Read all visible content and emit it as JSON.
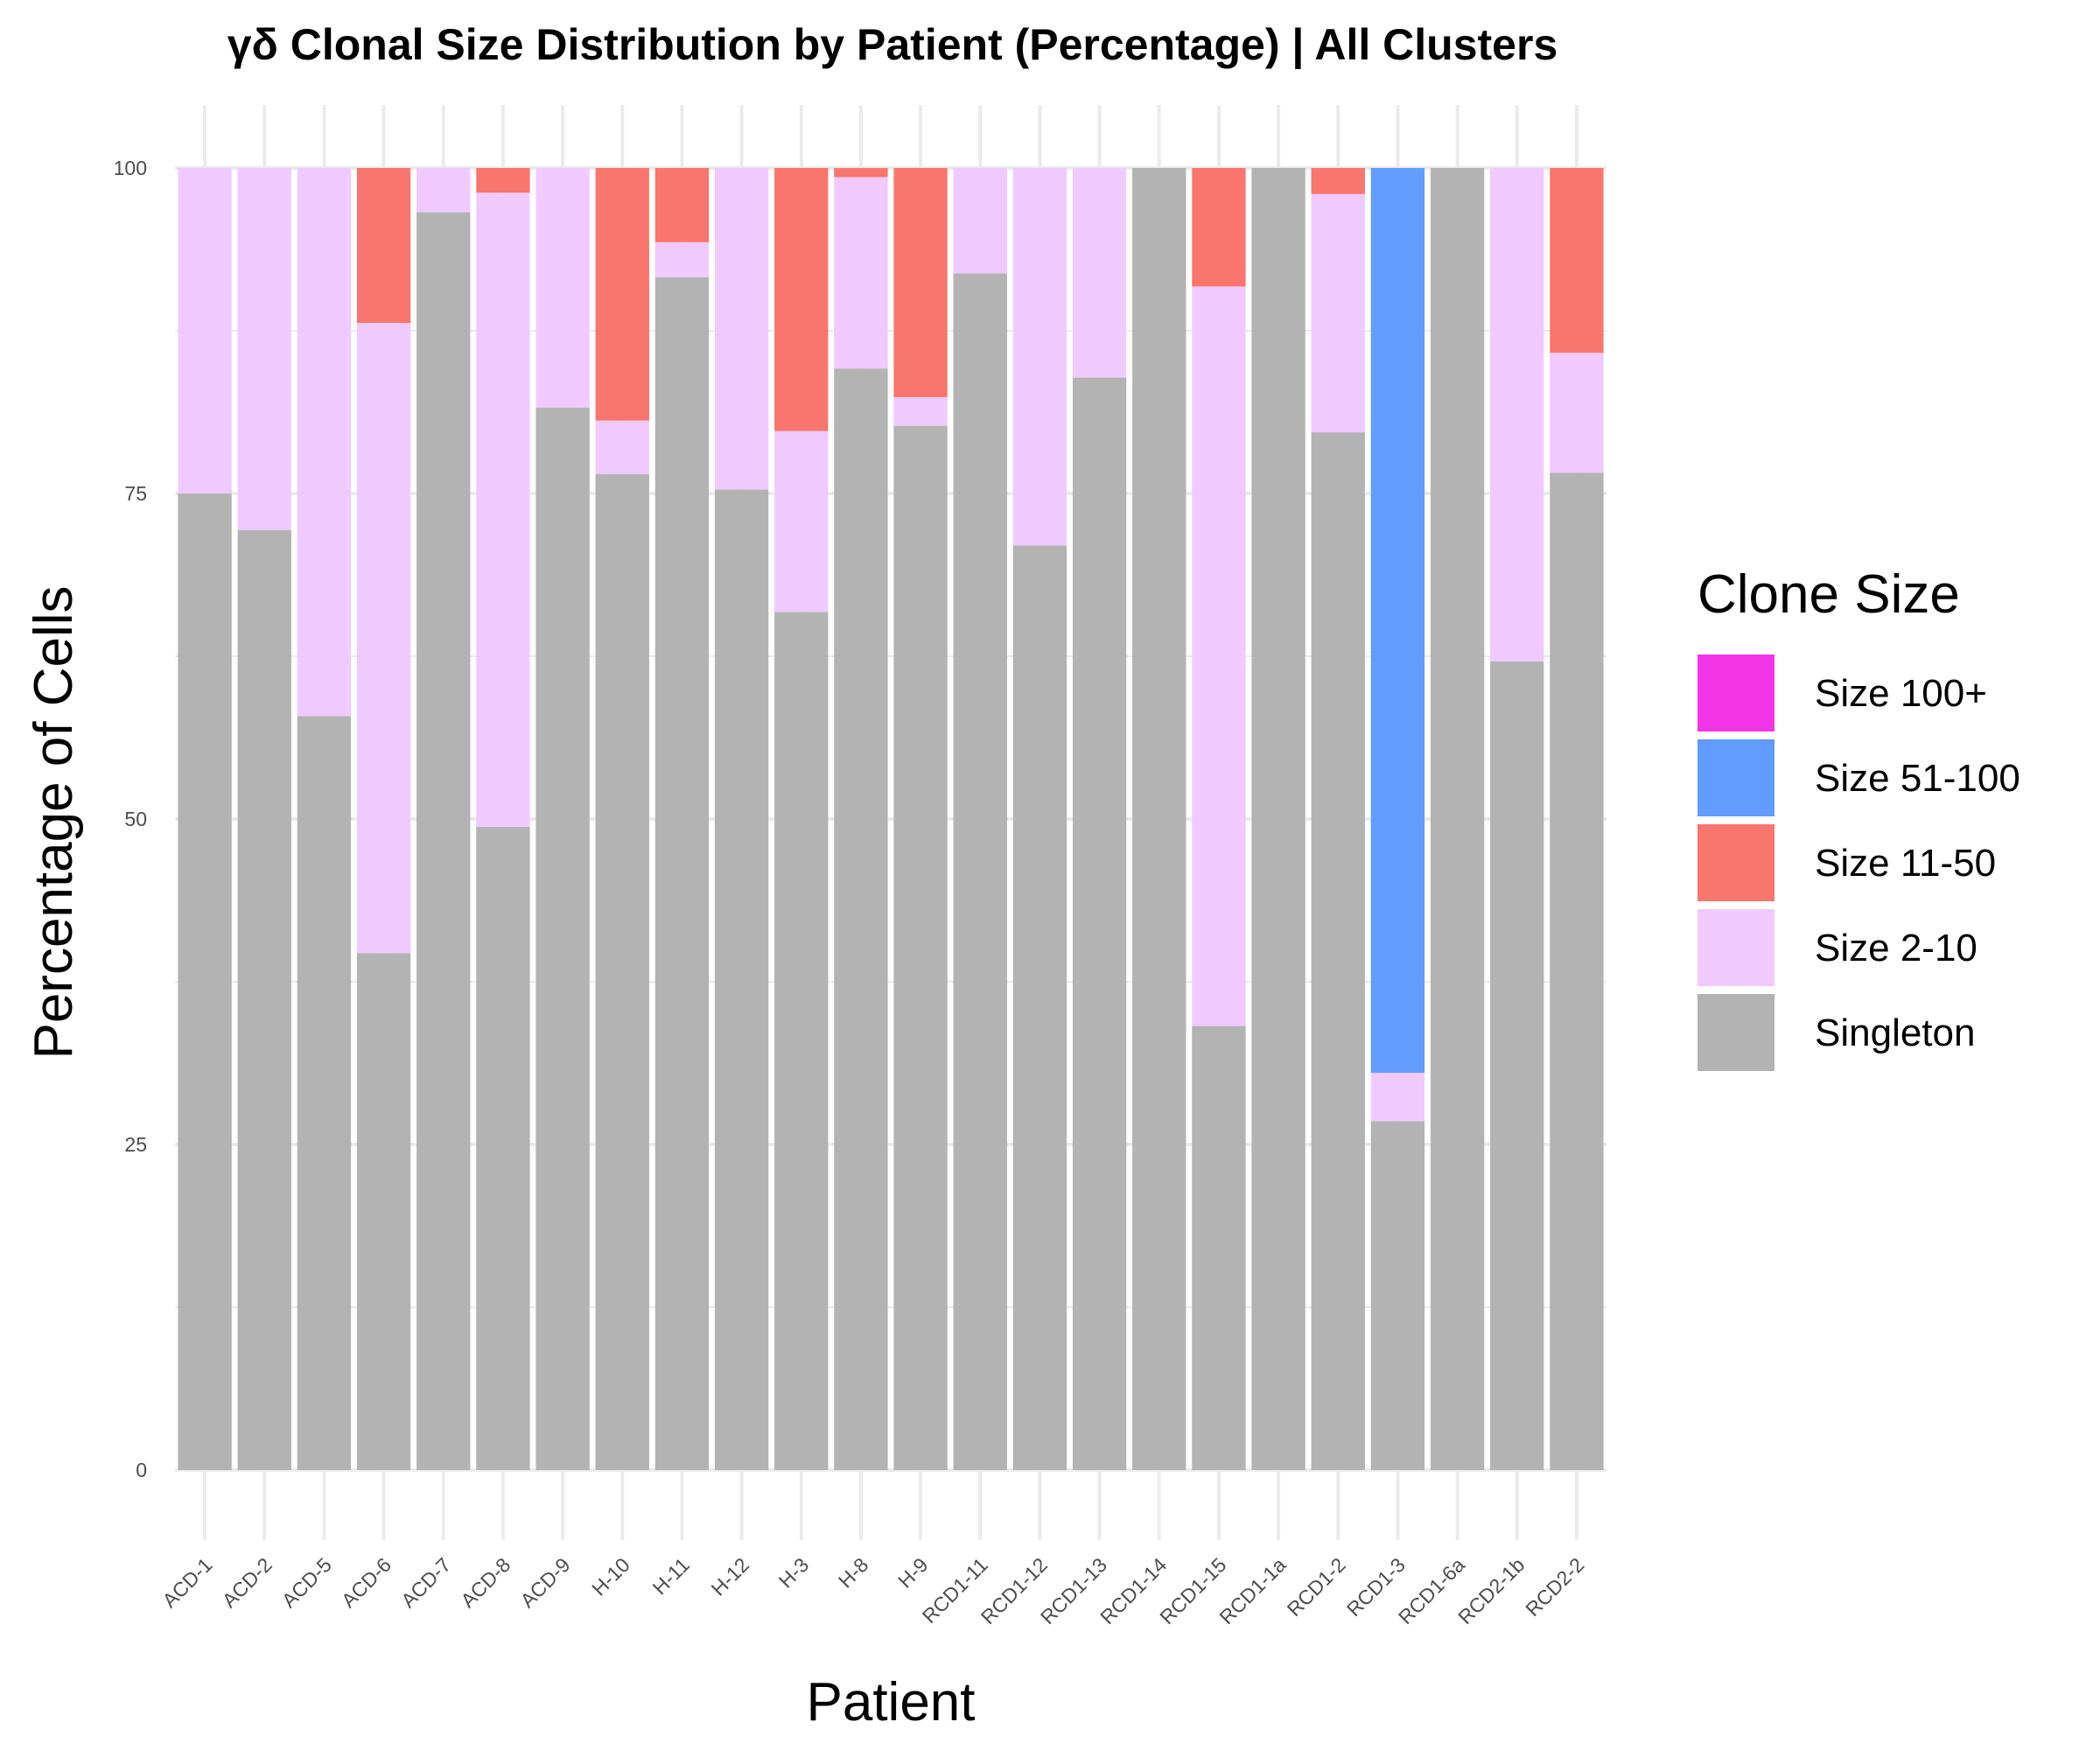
{
  "chart_data": {
    "type": "bar",
    "stacked": true,
    "title": "γδ Clonal Size Distribution by Patient (Percentage) | All Clusters",
    "xlabel": "Patient",
    "ylabel": "Percentage of Cells",
    "ylim": [
      0,
      100
    ],
    "yticks": [
      0,
      25,
      50,
      75,
      100
    ],
    "grid": true,
    "legend": {
      "title": "Clone Size",
      "position": "right"
    },
    "categories": [
      "ACD-1",
      "ACD-2",
      "ACD-5",
      "ACD-6",
      "ACD-7",
      "ACD-8",
      "ACD-9",
      "H-10",
      "H-11",
      "H-12",
      "H-3",
      "H-8",
      "H-9",
      "RCD1-11",
      "RCD1-12",
      "RCD1-13",
      "RCD1-14",
      "RCD1-15",
      "RCD1-1a",
      "RCD1-2",
      "RCD1-3",
      "RCD1-6a",
      "RCD2-1b",
      "RCD2-2"
    ],
    "series": [
      {
        "name": "Singleton",
        "color": "#b3b3b3",
        "values": [
          75.0,
          72.2,
          57.9,
          39.7,
          96.6,
          49.4,
          81.6,
          76.5,
          91.6,
          75.3,
          65.9,
          84.6,
          80.2,
          91.9,
          71.0,
          83.9,
          100,
          34.1,
          100,
          79.7,
          26.8,
          100,
          62.1,
          76.6
        ]
      },
      {
        "name": "Size 2-10",
        "color": "#f0caff",
        "values": [
          25.0,
          27.8,
          42.1,
          48.4,
          3.4,
          48.7,
          18.4,
          4.1,
          2.7,
          24.7,
          13.9,
          14.7,
          2.2,
          8.1,
          29.0,
          16.1,
          0,
          56.8,
          0,
          18.3,
          3.7,
          0,
          37.9,
          9.2
        ]
      },
      {
        "name": "Size 11-50",
        "color": "#f8766d",
        "values": [
          0,
          0,
          0,
          11.9,
          0,
          1.9,
          0,
          19.4,
          5.7,
          0,
          20.2,
          0.7,
          17.6,
          0,
          0,
          0,
          0,
          9.1,
          0,
          2.0,
          0,
          0,
          0,
          14.2
        ]
      },
      {
        "name": "Size 51-100",
        "color": "#619cff",
        "values": [
          0,
          0,
          0,
          0,
          0,
          0,
          0,
          0,
          0,
          0,
          0,
          0,
          0,
          0,
          0,
          0,
          0,
          0,
          0,
          0,
          69.5,
          0,
          0,
          0
        ]
      },
      {
        "name": "Size 100+",
        "color": "#f135e6",
        "values": [
          0,
          0,
          0,
          0,
          0,
          0,
          0,
          0,
          0,
          0,
          0,
          0,
          0,
          0,
          0,
          0,
          0,
          0,
          0,
          0,
          0,
          0,
          0,
          0
        ]
      }
    ],
    "legend_order": [
      "Size 100+",
      "Size 51-100",
      "Size 11-50",
      "Size 2-10",
      "Singleton"
    ]
  }
}
